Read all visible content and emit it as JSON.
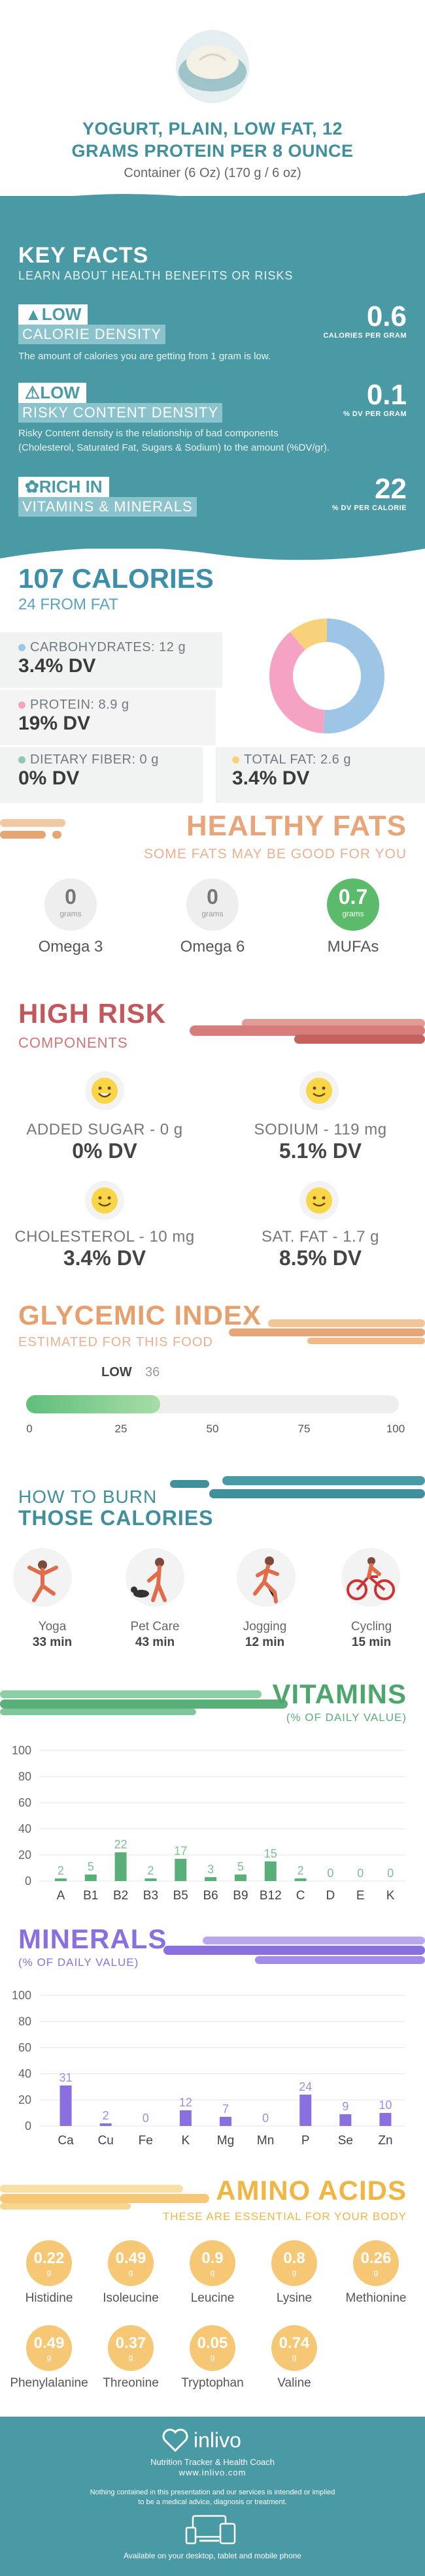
{
  "header": {
    "title_line1": "YOGURT, PLAIN, LOW FAT, 12",
    "title_line2": "GRAMS PROTEIN PER 8 OUNCE",
    "serving": "Container (6 Oz) (170 g / 6 oz)"
  },
  "key_facts": {
    "title": "KEY FACTS",
    "subtitle": "LEARN ABOUT HEALTH BENEFITS OR RISKS",
    "items": [
      {
        "level": "LOW",
        "tag": "CALORIE DENSITY",
        "desc": "The amount of calories you are getting from 1 gram is low.",
        "value": "0.6",
        "unit": "CALORIES PER GRAM"
      },
      {
        "level": "LOW",
        "tag": "RISKY CONTENT DENSITY",
        "desc1": "Risky Content density is the relationship of bad components",
        "desc2": "(Cholesterol, Saturated Fat, Sugars & Sodium) to the amount (%DV/gr).",
        "value": "0.1",
        "unit": "% DV PER GRAM"
      },
      {
        "level": "RICH  IN",
        "tag": "VITAMINS & MINERALS",
        "value": "22",
        "unit": "% DV PER CALORIE"
      }
    ]
  },
  "nutrition": {
    "calories": "107 CALORIES",
    "from_fat": "24 FROM FAT",
    "carbs_label": "CARBOHYDRATES: 12 g",
    "carbs_dv": "3.4% DV",
    "protein_label": "PROTEIN: 8.9 g",
    "protein_dv": "19% DV",
    "fiber_label": "DIETARY FIBER: 0 g",
    "fiber_dv": "0% DV",
    "fat_label": "TOTAL FAT: 2.6 g",
    "fat_dv": "3.4% DV",
    "colors": {
      "carbs": "#9cc5e6",
      "protein": "#f6a2c3",
      "fiber": "#8fc7b4",
      "fat": "#f8d27b"
    },
    "donut": [
      {
        "name": "carbs",
        "value": 12,
        "color": "#9cc5e6"
      },
      {
        "name": "protein",
        "value": 8.9,
        "color": "#f6a2c3"
      },
      {
        "name": "fat",
        "value": 2.6,
        "color": "#f8d27b"
      }
    ]
  },
  "healthy_fats": {
    "title": "HEALTHY FATS",
    "subtitle": "SOME FATS MAY BE GOOD FOR YOU",
    "items": [
      {
        "name": "Omega 3",
        "value": "0",
        "unit": "grams"
      },
      {
        "name": "Omega 6",
        "value": "0",
        "unit": "grams"
      },
      {
        "name": "MUFAs",
        "value": "0.7",
        "unit": "grams"
      }
    ]
  },
  "high_risk": {
    "title": "HIGH RISK",
    "subtitle": "COMPONENTS",
    "items": [
      {
        "name": "ADDED SUGAR - 0 g",
        "dv": "0% DV"
      },
      {
        "name": "SODIUM - 119 mg",
        "dv": "5.1% DV"
      },
      {
        "name": "CHOLESTEROL - 10 mg",
        "dv": "3.4% DV"
      },
      {
        "name": "SAT. FAT - 1.7 g",
        "dv": "8.5% DV"
      }
    ]
  },
  "glycemic": {
    "title": "GLYCEMIC INDEX",
    "subtitle": "ESTIMATED FOR THIS FOOD",
    "level": "LOW",
    "value": "36",
    "value_num": 36,
    "ticks": [
      "0",
      "25",
      "50",
      "75",
      "100"
    ]
  },
  "burn": {
    "title1": "HOW TO BURN",
    "title2": "THOSE CALORIES",
    "items": [
      {
        "name": "Yoga",
        "min": "33 min",
        "icon": "yoga-icon"
      },
      {
        "name": "Pet Care",
        "min": "43 min",
        "icon": "pet-care-icon"
      },
      {
        "name": "Jogging",
        "min": "12 min",
        "icon": "jogging-icon"
      },
      {
        "name": "Cycling",
        "min": "15 min",
        "icon": "cycling-icon"
      }
    ]
  },
  "vitamins": {
    "title": "VITAMINS",
    "subtitle": "(% OF DAILY VALUE)"
  },
  "minerals": {
    "title": "MINERALS",
    "subtitle": "(% OF DAILY VALUE)"
  },
  "chart_data": [
    {
      "type": "bar",
      "categories": [
        "A",
        "B1",
        "B2",
        "B3",
        "B5",
        "B6",
        "B9",
        "B12",
        "C",
        "D",
        "E",
        "K"
      ],
      "values": [
        2,
        5,
        22,
        2,
        17,
        3,
        5,
        15,
        2,
        0,
        0,
        0
      ],
      "ylim": [
        0,
        100
      ],
      "yticks": [
        "0",
        "20",
        "40",
        "60",
        "80",
        "100"
      ],
      "color": "#5aaf78"
    },
    {
      "type": "bar",
      "categories": [
        "Ca",
        "Cu",
        "Fe",
        "K",
        "Mg",
        "Mn",
        "P",
        "Se",
        "Zn"
      ],
      "values": [
        31,
        2,
        0,
        12,
        7,
        0,
        24,
        9,
        10
      ],
      "ylim": [
        0,
        100
      ],
      "yticks": [
        "0",
        "20",
        "40",
        "60",
        "80",
        "100"
      ],
      "color": "#8a6fe0"
    }
  ],
  "amino": {
    "title": "AMINO ACIDS",
    "subtitle": "THESE ARE ESSENTIAL FOR YOUR BODY",
    "items": [
      {
        "name": "Histidine",
        "value": "0.22",
        "unit": "g"
      },
      {
        "name": "Isoleucine",
        "value": "0.49",
        "unit": "g"
      },
      {
        "name": "Leucine",
        "value": "0.9",
        "unit": "g"
      },
      {
        "name": "Lysine",
        "value": "0.8",
        "unit": "g"
      },
      {
        "name": "Methionine",
        "value": "0.26",
        "unit": "g"
      },
      {
        "name": "Phenylalanine",
        "value": "0.49",
        "unit": "g"
      },
      {
        "name": "Threonine",
        "value": "0.37",
        "unit": "g"
      },
      {
        "name": "Tryptophan",
        "value": "0.05",
        "unit": "g"
      },
      {
        "name": "Valine",
        "value": "0.74",
        "unit": "g"
      }
    ]
  },
  "footer": {
    "brand": "inlivo",
    "tagline": "Nutrition Tracker & Health Coach",
    "url": "www.inlivo.com",
    "disclaimer1": "Nothing contained in this presentation and our services is intended or implied",
    "disclaimer2": "to be a medical advice, diagnosis or treatment.",
    "available": "Available on your desktop, tablet and mobile phone"
  }
}
